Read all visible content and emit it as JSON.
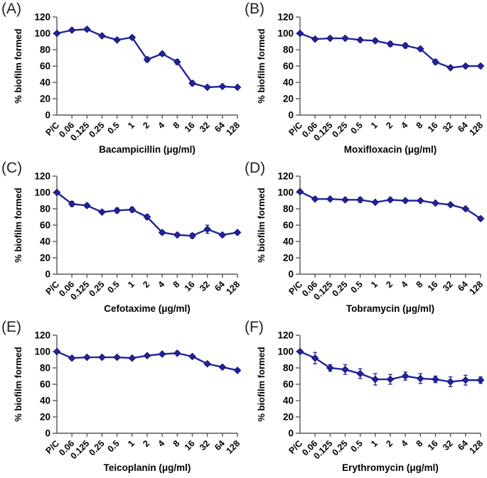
{
  "figure": {
    "description": "Six-panel line chart figure: % biofilm formed vs antibiotic concentration",
    "background": "#ffffff"
  },
  "style": {
    "series_color": "#23239d",
    "marker_edge": "#12126e",
    "axis_color": "#595959",
    "text_color": "#000000"
  },
  "chart_data": [
    {
      "type": "line",
      "panel": "(A)",
      "xlabel": "Bacampicillin (μg/ml)",
      "ylabel": "% biofilm formed",
      "categories": [
        "P/C",
        "0.06",
        "0.125",
        "0.25",
        "0.5",
        "1",
        "2",
        "4",
        "8",
        "16",
        "32",
        "64",
        "128"
      ],
      "values": [
        100,
        104,
        105,
        97,
        92,
        95,
        68,
        75,
        65,
        39,
        34,
        35,
        34
      ],
      "errors": [
        1.5,
        1.5,
        1.5,
        2,
        2,
        2,
        3,
        2,
        3,
        3,
        1.5,
        1.5,
        1.5
      ],
      "ylim": [
        0,
        120
      ],
      "yticks": [
        0,
        20,
        40,
        60,
        80,
        100,
        120
      ],
      "marker": "diamond",
      "grid": false,
      "legend": "none"
    },
    {
      "type": "line",
      "panel": "(B)",
      "xlabel": "Moxifloxacin (μg/ml)",
      "ylabel": "% biofilm formed",
      "categories": [
        "P/C",
        "0.06",
        "0.125",
        "0.25",
        "0.5",
        "1",
        "2",
        "4",
        "8",
        "16",
        "32",
        "64",
        "128"
      ],
      "values": [
        100,
        93,
        94,
        94,
        92,
        91,
        87,
        85,
        81,
        65,
        58,
        60,
        60
      ],
      "errors": [
        2,
        2,
        2,
        2,
        2,
        2.5,
        3,
        3,
        2.5,
        3,
        2,
        2,
        2
      ],
      "ylim": [
        0,
        120
      ],
      "yticks": [
        0,
        20,
        40,
        60,
        80,
        100,
        120
      ],
      "marker": "diamond",
      "grid": false,
      "legend": "none"
    },
    {
      "type": "line",
      "panel": "(C)",
      "xlabel": "Cefotaxime (μg/ml)",
      "ylabel": "% biofilm formed",
      "categories": [
        "P/C",
        "0.06",
        "0.125",
        "0.25",
        "0.5",
        "1",
        "2",
        "4",
        "8",
        "16",
        "32",
        "64",
        "128"
      ],
      "values": [
        100,
        86,
        84,
        76,
        78,
        79,
        70,
        51,
        48,
        47,
        55,
        48,
        51
      ],
      "errors": [
        2,
        3,
        2.5,
        2,
        3,
        3,
        3,
        2,
        2,
        3,
        5,
        2,
        2
      ],
      "ylim": [
        0,
        120
      ],
      "yticks": [
        0,
        20,
        40,
        60,
        80,
        100,
        120
      ],
      "marker": "diamond",
      "grid": false,
      "legend": "none"
    },
    {
      "type": "line",
      "panel": "(D)",
      "xlabel": "Tobramycin (μg/ml)",
      "ylabel": "% biofilm formed",
      "categories": [
        "P/C",
        "0.06",
        "0.125",
        "0.25",
        "0.5",
        "1",
        "2",
        "4",
        "8",
        "16",
        "32",
        "64",
        "128"
      ],
      "values": [
        101,
        92,
        92,
        91,
        91,
        88,
        91,
        90,
        90,
        87,
        85,
        80,
        68
      ],
      "errors": [
        2,
        1.5,
        1.5,
        2,
        3,
        1.5,
        1.5,
        1.5,
        1.5,
        1.5,
        1.5,
        2,
        2
      ],
      "ylim": [
        0,
        120
      ],
      "yticks": [
        0,
        20,
        40,
        60,
        80,
        100,
        120
      ],
      "marker": "diamond",
      "grid": false,
      "legend": "none"
    },
    {
      "type": "line",
      "panel": "(E)",
      "xlabel": "Teicoplanin (μg/ml)",
      "ylabel": "% biofilm formed",
      "categories": [
        "P/C",
        "0.06",
        "0.125",
        "0.25",
        "0.5",
        "1",
        "2",
        "4",
        "8",
        "16",
        "32",
        "64",
        "128"
      ],
      "values": [
        100,
        92,
        93,
        93,
        93,
        92,
        95,
        97,
        98,
        94,
        85,
        81,
        77
      ],
      "errors": [
        1.5,
        1.5,
        1.5,
        1.5,
        1.5,
        1.5,
        1.5,
        1.5,
        1.5,
        1.5,
        2,
        2,
        2
      ],
      "ylim": [
        0,
        120
      ],
      "yticks": [
        0,
        20,
        40,
        60,
        80,
        100,
        120
      ],
      "marker": "diamond",
      "grid": false,
      "legend": "none"
    },
    {
      "type": "line",
      "panel": "(F)",
      "xlabel": "Erythromycin (μg/ml)",
      "ylabel": "% biofilm formed",
      "categories": [
        "P/C",
        "0.06",
        "0.125",
        "0.25",
        "0.5",
        "1",
        "2",
        "4",
        "8",
        "16",
        "32",
        "64",
        "128"
      ],
      "values": [
        100,
        92,
        80,
        78,
        73,
        66,
        66,
        70,
        67,
        66,
        63,
        65,
        65
      ],
      "errors": [
        2,
        7,
        4,
        6,
        6,
        7,
        6,
        5,
        6,
        4,
        6,
        6,
        4
      ],
      "ylim": [
        0,
        120
      ],
      "yticks": [
        0,
        20,
        40,
        60,
        80,
        100,
        120
      ],
      "marker": "diamond",
      "grid": false,
      "legend": "none"
    }
  ]
}
